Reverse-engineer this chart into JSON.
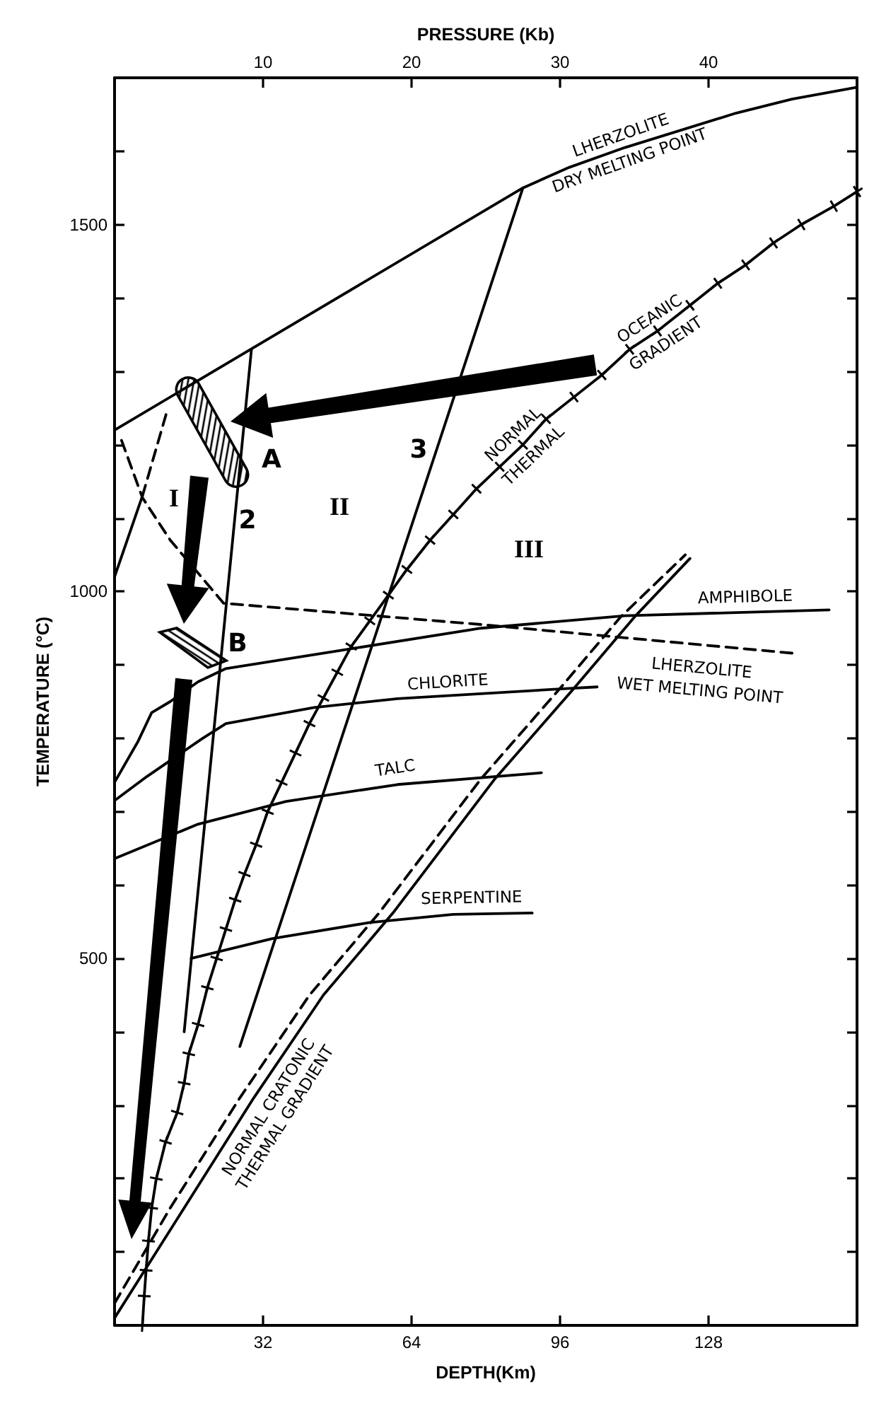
{
  "chart_data": {
    "type": "line",
    "xlabel": "DEPTH(Km)",
    "x2label": "PRESSURE (Kb)",
    "ylabel": "TEMPERATURE (°C)",
    "xlim": [
      0,
      160
    ],
    "xticks": [
      32,
      64,
      96,
      128
    ],
    "x2lim": [
      0,
      50
    ],
    "x2ticks": [
      10,
      20,
      30,
      40
    ],
    "ylim": [
      0,
      1700
    ],
    "yticks": [
      {
        "value": 100,
        "label": null
      },
      {
        "value": 200,
        "label": null
      },
      {
        "value": 300,
        "label": null
      },
      {
        "value": 400,
        "label": null
      },
      500,
      {
        "value": 600,
        "label": null
      },
      {
        "value": 700,
        "label": null
      },
      {
        "value": 800,
        "label": null
      },
      {
        "value": 900,
        "label": null
      },
      1000,
      {
        "value": 1100,
        "label": null
      },
      {
        "value": 1200,
        "label": null
      },
      {
        "value": 1300,
        "label": null
      },
      {
        "value": 1400,
        "label": null
      },
      1500,
      {
        "value": 1600,
        "label": null
      }
    ],
    "series": [
      {
        "color": "#000000",
        "x": [
          0,
          88,
          98,
          110,
          134,
          146,
          160
        ],
        "values": [
          1220,
          1550,
          1578,
          1605,
          1652,
          1671,
          1687
        ]
      },
      {
        "color": "#000000",
        "marker": "cross",
        "x": [
          6,
          6.4,
          6.8,
          7.3,
          8,
          9,
          11,
          13.5,
          15,
          16,
          18,
          20,
          22,
          24,
          26,
          28,
          30.5,
          33,
          36,
          39,
          42,
          45,
          48,
          51,
          55,
          59,
          63,
          68,
          73,
          78,
          83,
          88,
          93,
          99,
          105,
          111,
          117,
          124,
          130,
          136,
          142,
          148,
          155,
          160
        ],
        "values": [
          0,
          40,
          75,
          115,
          160,
          200,
          250,
          290,
          330,
          370,
          410,
          460,
          500,
          540,
          580,
          615,
          655,
          700,
          740,
          780,
          820,
          855,
          890,
          925,
          960,
          995,
          1030,
          1070,
          1105,
          1140,
          1170,
          1200,
          1235,
          1265,
          1295,
          1330,
          1355,
          1390,
          1420,
          1445,
          1475,
          1500,
          1525,
          1545
        ]
      },
      {
        "color": "#000000",
        "x": [
          0,
          15,
          30,
          45,
          60,
          82,
          99,
          112,
          124
        ],
        "values": [
          10,
          160,
          310,
          450,
          562,
          745,
          868,
          965,
          1045
        ]
      },
      {
        "color": "#000000",
        "line_style": "dashed",
        "x": [
          0,
          12,
          27,
          42,
          57,
          79,
          96,
          109,
          123
        ],
        "values": [
          30,
          160,
          310,
          450,
          562,
          745,
          868,
          965,
          1050
        ]
      },
      {
        "color": "#000000",
        "x": [
          27,
          88
        ],
        "values": [
          380,
          1550
        ]
      },
      {
        "color": "#000000",
        "x": [
          15,
          29.5
        ],
        "values": [
          400,
          1330
        ]
      },
      {
        "color": "#000000",
        "x": [
          0,
          5,
          8,
          12,
          18,
          24,
          49,
          79,
          110,
          154
        ],
        "values": [
          740,
          795,
          835,
          850,
          877,
          895,
          920,
          950,
          967,
          975
        ]
      },
      {
        "color": "#000000",
        "x": [
          0,
          7,
          19,
          24,
          43,
          61,
          98,
          104
        ],
        "values": [
          715,
          748,
          800,
          820,
          842,
          854,
          868,
          870
        ]
      },
      {
        "color": "#000000",
        "x": [
          0,
          18,
          37,
          61,
          92
        ],
        "values": [
          636,
          683,
          714,
          737,
          753
        ]
      },
      {
        "color": "#000000",
        "x": [
          16.5,
          34,
          55,
          73,
          90
        ],
        "values": [
          500,
          527,
          549,
          560,
          562
        ]
      },
      {
        "color": "#000000",
        "line_style": "dashed",
        "x": [
          1.5,
          6,
          12,
          23.5,
          79,
          146
        ],
        "values": [
          1206,
          1128,
          1070,
          984,
          955,
          916
        ]
      },
      {
        "color": "#000000",
        "x": [
          0,
          6
        ],
        "values": [
          1020,
          1130
        ]
      },
      {
        "color": "#000000",
        "line_style": "dashed",
        "x": [
          6,
          11.5
        ],
        "values": [
          1130,
          1250
        ]
      }
    ],
    "annotations": [
      {
        "text": "LHERZOLITE\nDRY MELTING POINT",
        "x": 110,
        "y": 1605
      },
      {
        "text": "NORMAL\nTHERMAL",
        "x": 88,
        "y": 1200
      },
      {
        "text": "OCEANIC\nGRADIENT",
        "x": 117,
        "y": 1355
      },
      {
        "text": "NORMAL CRATONIC\nTHERMAL GRADIENT",
        "x": 30,
        "y": 310
      },
      {
        "text": "AMPHIBOLE",
        "x": 136,
        "y": 972
      },
      {
        "text": "CHLORITE",
        "x": 72,
        "y": 858
      },
      {
        "text": "LHERZOLITE\nWET MELTING POINT",
        "x": 127,
        "y": 927
      },
      {
        "text": "TALC",
        "x": 61,
        "y": 737
      },
      {
        "text": "SERPENTINE",
        "x": 77,
        "y": 560
      },
      "A",
      "2",
      "I",
      "II",
      "III",
      "3",
      "B"
    ]
  }
}
